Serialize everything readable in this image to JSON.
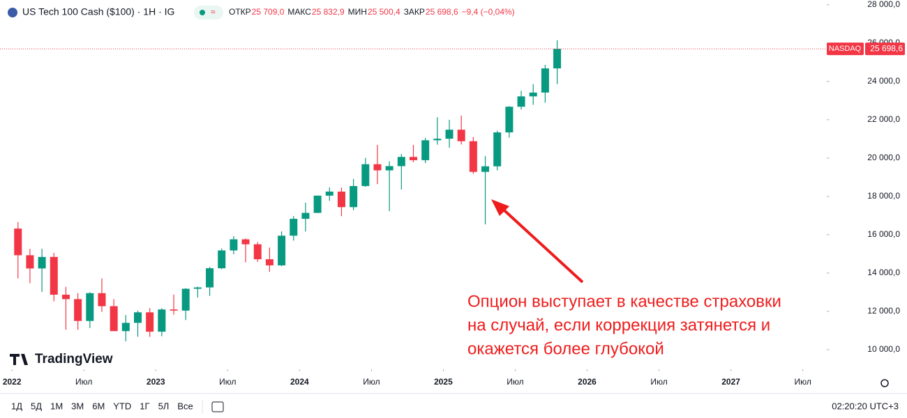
{
  "header": {
    "symbol": "US Tech 100 Cash ($100) · 1H · IG",
    "quote": [
      {
        "label": "ОТКР",
        "value": "25 709,0"
      },
      {
        "label": "МАКС",
        "value": "25 832,9"
      },
      {
        "label": "МИН",
        "value": "25 500,4"
      },
      {
        "label": "ЗАКР",
        "value": "25 698,6"
      }
    ],
    "change": "−9,4 (−0,04%)"
  },
  "chart_data": {
    "type": "candlestick",
    "x": [
      "2022-01",
      "2022-02",
      "2022-03",
      "2022-04",
      "2022-05",
      "2022-06",
      "2022-07",
      "2022-08",
      "2022-09",
      "2022-10",
      "2022-11",
      "2022-12",
      "2023-01",
      "2023-02",
      "2023-03",
      "2023-04",
      "2023-05",
      "2023-06",
      "2023-07",
      "2023-08",
      "2023-09",
      "2023-10",
      "2023-11",
      "2023-12",
      "2024-01",
      "2024-02",
      "2024-03",
      "2024-04",
      "2024-05",
      "2024-06",
      "2024-07",
      "2024-08",
      "2024-09",
      "2024-10",
      "2024-11",
      "2024-12",
      "2025-01",
      "2025-02",
      "2025-03",
      "2025-04",
      "2025-05",
      "2025-06",
      "2025-07",
      "2025-08",
      "2025-09",
      "2025-10"
    ],
    "open": [
      16320,
      14930,
      14240,
      14840,
      12870,
      12640,
      11500,
      12950,
      12270,
      10970,
      11400,
      11950,
      10940,
      12100,
      12040,
      13180,
      13250,
      14250,
      15180,
      15760,
      15500,
      14720,
      14400,
      15950,
      16830,
      17140,
      18040,
      18250,
      17440,
      18540,
      19680,
      19360,
      19580,
      20060,
      19890,
      20930,
      21010,
      21480,
      20880,
      19280,
      19570,
      21340,
      22680,
      23220,
      23420,
      24680
    ],
    "high": [
      16660,
      15260,
      15270,
      15050,
      13280,
      12950,
      13000,
      13720,
      12640,
      11810,
      12040,
      12170,
      12170,
      12880,
      13210,
      13290,
      14320,
      15280,
      15930,
      15800,
      15620,
      15330,
      16170,
      16970,
      17670,
      18040,
      18470,
      18460,
      18910,
      20010,
      20690,
      19830,
      20210,
      20690,
      21050,
      22130,
      22000,
      22220,
      21100,
      20100,
      21430,
      22710,
      23510,
      23860,
      24870,
      26150
    ],
    "low": [
      13720,
      13470,
      13020,
      12520,
      11040,
      11040,
      11130,
      11970,
      10980,
      10440,
      10680,
      10670,
      10700,
      11830,
      11550,
      12720,
      12810,
      14200,
      14980,
      14560,
      14580,
      14060,
      14360,
      15690,
      16170,
      17130,
      17770,
      16970,
      17280,
      18500,
      18640,
      17230,
      18360,
      19780,
      19740,
      20700,
      20540,
      20710,
      19180,
      16540,
      19360,
      21070,
      22530,
      22780,
      22890,
      23860
    ],
    "close": [
      14930,
      14240,
      14840,
      12870,
      12640,
      11500,
      12950,
      12270,
      10970,
      11400,
      11950,
      10940,
      12100,
      12040,
      13180,
      13250,
      14250,
      15180,
      15760,
      15500,
      14720,
      14400,
      15950,
      16830,
      17140,
      18040,
      18250,
      17440,
      18540,
      19680,
      19360,
      19580,
      20060,
      19890,
      20930,
      21010,
      21480,
      20880,
      19280,
      19570,
      21340,
      22680,
      23220,
      23420,
      24680,
      25698.6
    ],
    "up_color": "#089981",
    "down_color": "#f23645",
    "xlim": [
      "2021-12",
      "2027-09"
    ],
    "xticks": [
      {
        "value": "2022-01",
        "label": "2022"
      },
      {
        "value": "2022-07",
        "label": "Июл"
      },
      {
        "value": "2023-01",
        "label": "2023"
      },
      {
        "value": "2023-07",
        "label": "Июл"
      },
      {
        "value": "2024-01",
        "label": "2024"
      },
      {
        "value": "2024-07",
        "label": "Июл"
      },
      {
        "value": "2025-01",
        "label": "2025"
      },
      {
        "value": "2025-07",
        "label": "Июл"
      },
      {
        "value": "2026-01",
        "label": "2026"
      },
      {
        "value": "2026-07",
        "label": "Июл"
      },
      {
        "value": "2027-01",
        "label": "2027"
      },
      {
        "value": "2027-07",
        "label": "Июл"
      }
    ],
    "ylim": [
      8980,
      28250
    ],
    "yticks": [
      {
        "value": 10000,
        "label": "10 000,0"
      },
      {
        "value": 12000,
        "label": "12 000,0"
      },
      {
        "value": 14000,
        "label": "14 000,0"
      },
      {
        "value": 16000,
        "label": "16 000,0"
      },
      {
        "value": 18000,
        "label": "18 000,0"
      },
      {
        "value": 20000,
        "label": "20 000,0"
      },
      {
        "value": 22000,
        "label": "22 000,0"
      },
      {
        "value": 24000,
        "label": "24 000,0"
      },
      {
        "value": 26000,
        "label": "26 000,0"
      },
      {
        "value": 28000,
        "label": "28 000,0"
      }
    ],
    "last_price": {
      "name": "NASDAQ",
      "value": 25698.6,
      "label": "25 698,6",
      "color": "#f23645"
    },
    "annotation": [
      "Опцион выступает в качестве страховки",
      "на случай, если коррекция затянется и",
      "окажется более глубокой"
    ]
  },
  "logo": "TradingView",
  "toolbar": {
    "ranges": [
      "1Д",
      "5Д",
      "1М",
      "3М",
      "6М",
      "YTD",
      "1Г",
      "5Л",
      "Все"
    ],
    "clock": "02:20:20 UTC+3"
  }
}
